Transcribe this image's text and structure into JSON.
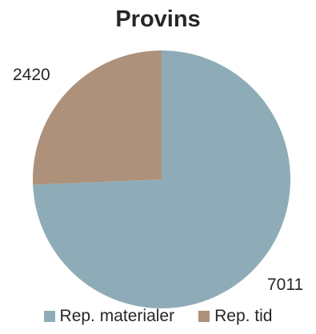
{
  "chart_data": {
    "type": "pie",
    "title": "Provins",
    "categories": [
      "Rep. materialer",
      "Rep. tid"
    ],
    "values": [
      7011,
      2420
    ],
    "colors": [
      "#8EACB8",
      "#AD917B"
    ],
    "data_labels": [
      "7011",
      "2420"
    ],
    "legend_position": "bottom",
    "start_angle_deg": 0,
    "direction": "clockwise"
  }
}
